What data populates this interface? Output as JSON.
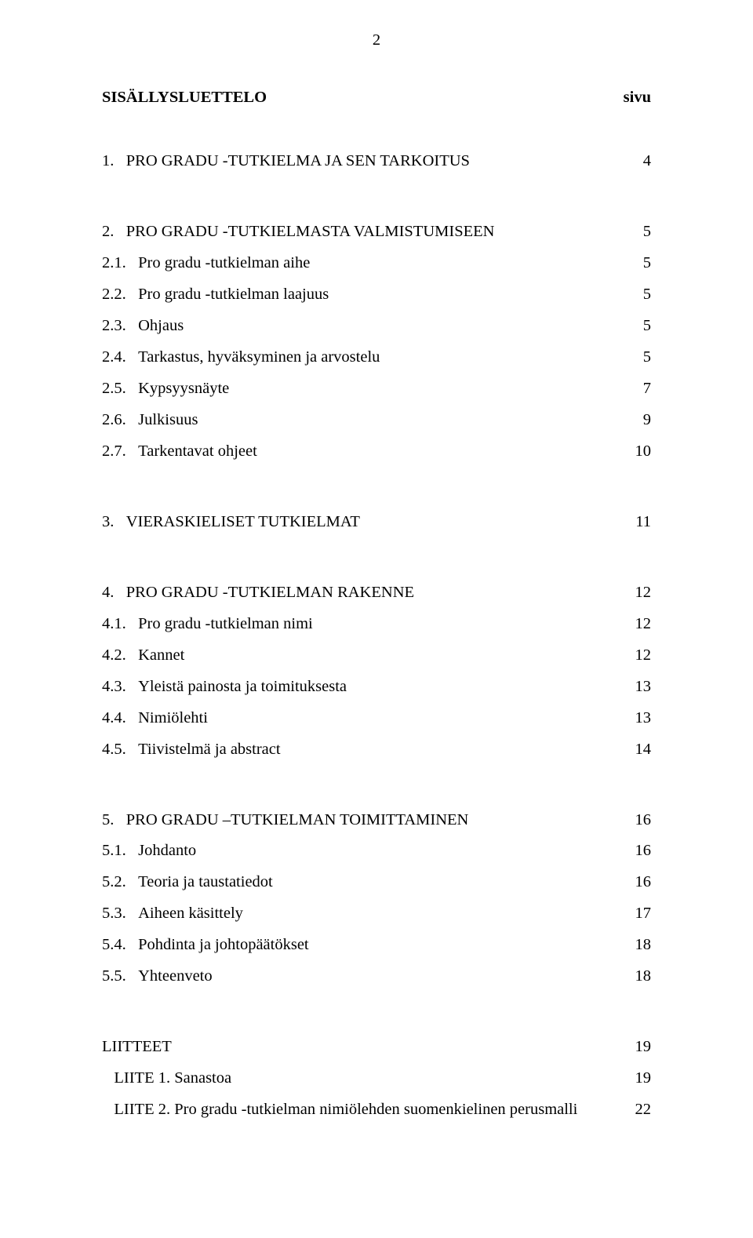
{
  "page_number": "2",
  "title_left": "SISÄLLYSLUETTELO",
  "title_right": "sivu",
  "sections": [
    {
      "rows": [
        {
          "num": "1.",
          "text": "PRO GRADU -TUTKIELMA JA SEN TARKOITUS",
          "page": "4",
          "level": 1
        }
      ]
    },
    {
      "rows": [
        {
          "num": "2.",
          "text": "PRO GRADU -TUTKIELMASTA VALMISTUMISEEN",
          "page": "5",
          "level": 1
        },
        {
          "num": "2.1.",
          "text": "Pro gradu -tutkielman aihe",
          "page": "5",
          "level": 2
        },
        {
          "num": "2.2.",
          "text": "Pro gradu -tutkielman laajuus",
          "page": "5",
          "level": 2
        },
        {
          "num": "2.3.",
          "text": "Ohjaus",
          "page": "5",
          "level": 2
        },
        {
          "num": "2.4.",
          "text": "Tarkastus, hyväksyminen ja arvostelu",
          "page": "5",
          "level": 2
        },
        {
          "num": "2.5.",
          "text": "Kypsyysnäyte",
          "page": "7",
          "level": 2
        },
        {
          "num": "2.6.",
          "text": "Julkisuus",
          "page": "9",
          "level": 2
        },
        {
          "num": "2.7.",
          "text": "Tarkentavat ohjeet",
          "page": "10",
          "level": 2
        }
      ]
    },
    {
      "rows": [
        {
          "num": "3.",
          "text": "VIERASKIELISET TUTKIELMAT",
          "page": "11",
          "level": 1
        }
      ]
    },
    {
      "rows": [
        {
          "num": "4.",
          "text": "PRO GRADU -TUTKIELMAN RAKENNE",
          "page": "12",
          "level": 1
        },
        {
          "num": "4.1.",
          "text": "Pro gradu -tutkielman nimi",
          "page": "12",
          "level": 2
        },
        {
          "num": "4.2.",
          "text": "Kannet",
          "page": "12",
          "level": 2
        },
        {
          "num": "4.3.",
          "text": "Yleistä painosta ja toimituksesta",
          "page": "13",
          "level": 2
        },
        {
          "num": "4.4.",
          "text": "Nimiölehti",
          "page": "13",
          "level": 2
        },
        {
          "num": "4.5.",
          "text": "Tiivistelmä ja abstract",
          "page": "14",
          "level": 2
        }
      ]
    },
    {
      "rows": [
        {
          "num": "5.",
          "text": "PRO GRADU –TUTKIELMAN TOIMITTAMINEN",
          "page": "16",
          "level": 1
        },
        {
          "num": "5.1.",
          "text": "Johdanto",
          "page": "16",
          "level": 2
        },
        {
          "num": "5.2.",
          "text": "Teoria ja taustatiedot",
          "page": "16",
          "level": 2
        },
        {
          "num": "5.3.",
          "text": "Aiheen käsittely",
          "page": "17",
          "level": 2
        },
        {
          "num": "5.4.",
          "text": "Pohdinta ja johtopäätökset",
          "page": "18",
          "level": 2
        },
        {
          "num": "5.5.",
          "text": "Yhteenveto",
          "page": "18",
          "level": 2
        }
      ]
    },
    {
      "rows": [
        {
          "num": "",
          "text": "LIITTEET",
          "page": "19",
          "level": 1
        },
        {
          "num": "",
          "text": "LIITE 1. Sanastoa",
          "page": "19",
          "level": 2,
          "indent": true
        },
        {
          "num": "",
          "text": "LIITE 2. Pro gradu -tutkielman nimiölehden suomenkielinen perusmalli",
          "page": "22",
          "level": 2,
          "indent": true
        }
      ]
    }
  ]
}
